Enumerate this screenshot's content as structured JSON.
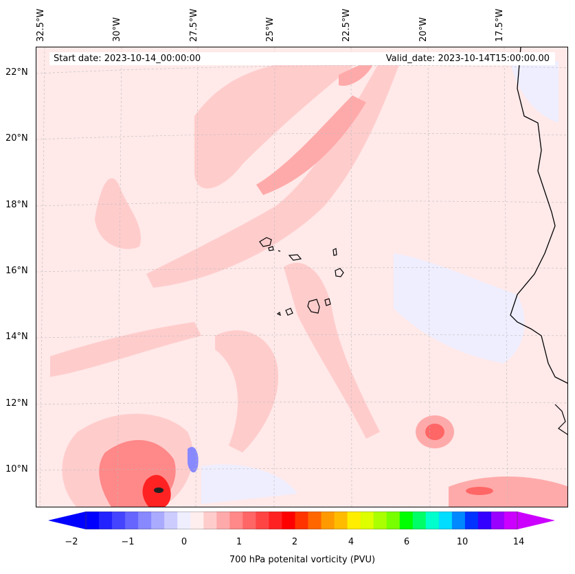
{
  "map": {
    "start_date": "Start date: 2023-10-14_00:00:00",
    "valid_date": "Valid_date: 2023-10-14T15:00:00.00",
    "longitude_labels": [
      "32.5°W",
      "30°W",
      "27.5°W",
      "25°W",
      "22.5°W",
      "20°W",
      "17.5°W"
    ],
    "latitude_labels": [
      "22°N",
      "20°N",
      "18°N",
      "16°N",
      "14°N",
      "12°N",
      "10°N"
    ],
    "variable": "700 hPa potential vorticity",
    "units": "PVU"
  },
  "colorbar": {
    "ticks": [
      "−2",
      "−1",
      "0",
      "1",
      "2",
      "4",
      "6",
      "10",
      "14"
    ],
    "label": "700 hPa potenital vorticity (PVU)",
    "colors": [
      "#0000ff",
      "#2222ff",
      "#4444ff",
      "#6666ff",
      "#8888ff",
      "#aaaaff",
      "#ccccff",
      "#eeeeff",
      "#ffeeee",
      "#ffcccc",
      "#ffaaaa",
      "#ff8888",
      "#ff6666",
      "#ff4444",
      "#ff2222",
      "#ff0000",
      "#ff3300",
      "#ff6600",
      "#ff9900",
      "#ffbb00",
      "#ffee00",
      "#ddff00",
      "#aaff00",
      "#77ff00",
      "#00ff00",
      "#00ff66",
      "#00ffcc",
      "#00ddff",
      "#0088ff",
      "#0033ff",
      "#3300ff",
      "#9900ff",
      "#cc00ff"
    ],
    "under_color": "#0000ff",
    "over_color": "#cc00ff"
  }
}
